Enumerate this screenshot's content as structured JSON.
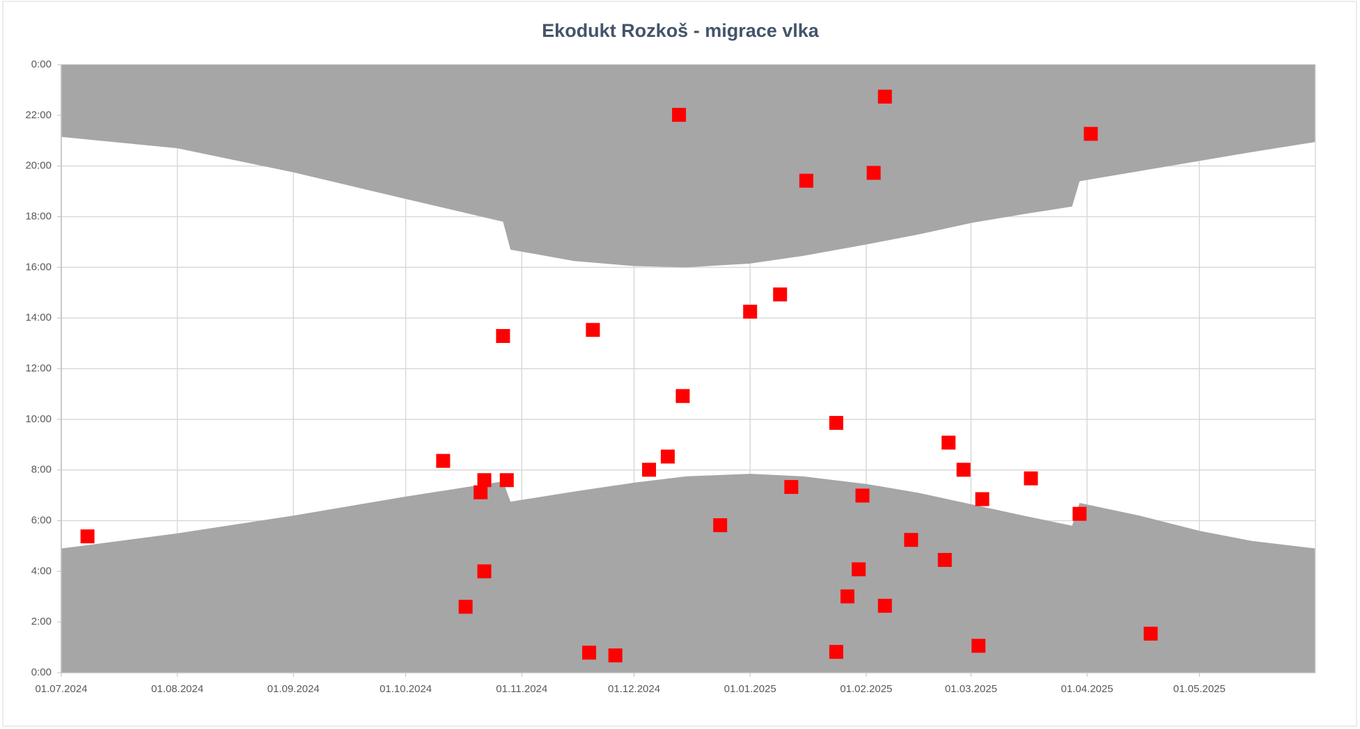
{
  "chart_data": {
    "type": "combo",
    "title": "Ekodukt Rozkoš - migrace vlka",
    "xlim": [
      "01.07.2024",
      "01.06.2025"
    ],
    "xticks": [
      "01.07.2024",
      "01.08.2024",
      "01.09.2024",
      "01.10.2024",
      "01.11.2024",
      "01.12.2024",
      "01.01.2025",
      "01.02.2025",
      "01.03.2025",
      "01.04.2025",
      "01.05.2025"
    ],
    "ylim": [
      0,
      24
    ],
    "yticks": [
      {
        "value": 0,
        "label": "0:00"
      },
      {
        "value": 2,
        "label": "2:00"
      },
      {
        "value": 4,
        "label": "4:00"
      },
      {
        "value": 6,
        "label": "6:00"
      },
      {
        "value": 8,
        "label": "8:00"
      },
      {
        "value": 10,
        "label": "10:00"
      },
      {
        "value": 12,
        "label": "12:00"
      },
      {
        "value": 14,
        "label": "14:00"
      },
      {
        "value": 16,
        "label": "16:00"
      },
      {
        "value": 18,
        "label": "18:00"
      },
      {
        "value": 20,
        "label": "20:00"
      },
      {
        "value": 22,
        "label": "22:00"
      },
      {
        "value": 24,
        "label": "0:00"
      }
    ],
    "grid": true,
    "series": [
      {
        "type": "area",
        "fill": "below",
        "color": "#a6a6a6",
        "x": [
          "01.07.2024",
          "01.08.2024",
          "01.09.2024",
          "01.10.2024",
          "27.10.2024",
          "29.10.2024",
          "15.11.2024",
          "01.12.2024",
          "15.12.2024",
          "01.01.2025",
          "15.01.2025",
          "01.02.2025",
          "15.02.2025",
          "01.03.2025",
          "15.03.2025",
          "28.03.2025",
          "30.03.2025",
          "15.04.2025",
          "01.05.2025",
          "15.05.2025",
          "01.06.2025"
        ],
        "values": [
          4.9,
          5.5,
          6.2,
          6.95,
          7.55,
          6.75,
          7.15,
          7.5,
          7.75,
          7.85,
          7.75,
          7.45,
          7.1,
          6.65,
          6.2,
          5.8,
          6.7,
          6.2,
          5.6,
          5.2,
          4.9
        ]
      },
      {
        "type": "area",
        "fill": "above",
        "color": "#a6a6a6",
        "x": [
          "01.07.2024",
          "01.08.2024",
          "01.09.2024",
          "01.10.2024",
          "27.10.2024",
          "29.10.2024",
          "15.11.2024",
          "01.12.2024",
          "15.12.2024",
          "01.01.2025",
          "15.01.2025",
          "01.02.2025",
          "15.02.2025",
          "01.03.2025",
          "15.03.2025",
          "28.03.2025",
          "30.03.2025",
          "15.04.2025",
          "01.05.2025",
          "15.05.2025",
          "01.06.2025"
        ],
        "values": [
          21.15,
          20.7,
          19.75,
          18.7,
          17.8,
          16.7,
          16.25,
          16.05,
          16.0,
          16.15,
          16.45,
          16.9,
          17.3,
          17.75,
          18.1,
          18.4,
          19.4,
          19.8,
          20.2,
          20.55,
          20.95
        ]
      },
      {
        "type": "scatter",
        "color": "#ff0000",
        "x": [
          "08.07.2024",
          "11.10.2024",
          "17.10.2024",
          "21.10.2024",
          "22.10.2024",
          "22.10.2024",
          "27.10.2024",
          "28.10.2024",
          "19.11.2024",
          "20.11.2024",
          "26.11.2024",
          "05.12.2024",
          "10.12.2024",
          "13.12.2024",
          "14.12.2024",
          "24.12.2024",
          "01.01.2025",
          "09.01.2025",
          "12.01.2025",
          "16.01.2025",
          "24.01.2025",
          "24.01.2025",
          "27.01.2025",
          "30.01.2025",
          "31.01.2025",
          "03.02.2025",
          "06.02.2025",
          "06.02.2025",
          "13.02.2025",
          "22.02.2025",
          "23.02.2025",
          "27.02.2025",
          "03.03.2025",
          "04.03.2025",
          "17.03.2025",
          "30.03.2025",
          "02.04.2025",
          "18.04.2025"
        ],
        "values": [
          5.38,
          8.36,
          2.6,
          7.12,
          7.6,
          4.0,
          13.29,
          7.6,
          0.79,
          13.53,
          0.68,
          8.01,
          8.53,
          22.02,
          10.92,
          5.82,
          14.25,
          14.93,
          7.33,
          19.42,
          9.86,
          0.82,
          3.01,
          4.08,
          6.99,
          19.73,
          2.64,
          22.74,
          5.24,
          4.45,
          9.08,
          8.01,
          1.06,
          6.85,
          7.67,
          6.27,
          21.27,
          1.54
        ]
      }
    ]
  }
}
